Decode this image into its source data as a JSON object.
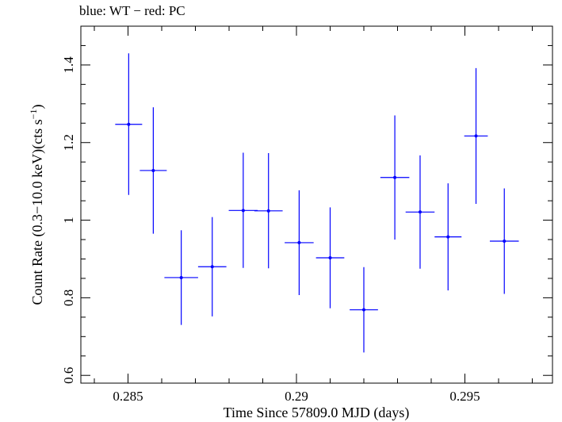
{
  "chart_data": {
    "type": "scatter",
    "title": "blue: WT − red: PC",
    "xlabel": "Time Since 57809.0 MJD (days)",
    "ylabel_main": "Count Rate (0.3−10.0 keV)(cts s",
    "ylabel_sup": "−1",
    "ylabel_close": ")",
    "xlim": [
      0.2836,
      0.2976
    ],
    "ylim": [
      0.58,
      1.5
    ],
    "x_ticks": [
      {
        "value": 0.285,
        "label": "0.285"
      },
      {
        "value": 0.29,
        "label": "0.29"
      },
      {
        "value": 0.295,
        "label": "0.295"
      }
    ],
    "y_ticks": [
      {
        "value": 0.6,
        "label": "0.6"
      },
      {
        "value": 0.8,
        "label": "0.8"
      },
      {
        "value": 1.0,
        "label": "1"
      },
      {
        "value": 1.2,
        "label": "1.2"
      },
      {
        "value": 1.4,
        "label": "1.4"
      }
    ],
    "grid": false,
    "series": [
      {
        "color": "#0000ff",
        "points": [
          {
            "x": 0.28502,
            "y": 1.247,
            "xerr": 0.0004,
            "yerr_low": 0.182,
            "yerr_high": 0.183
          },
          {
            "x": 0.28575,
            "y": 1.128,
            "xerr": 0.0004,
            "yerr_low": 0.163,
            "yerr_high": 0.163
          },
          {
            "x": 0.28658,
            "y": 0.852,
            "xerr": 0.0005,
            "yerr_low": 0.122,
            "yerr_high": 0.122
          },
          {
            "x": 0.2875,
            "y": 0.88,
            "xerr": 0.00042,
            "yerr_low": 0.128,
            "yerr_high": 0.128
          },
          {
            "x": 0.28842,
            "y": 1.025,
            "xerr": 0.00043,
            "yerr_low": 0.148,
            "yerr_high": 0.149
          },
          {
            "x": 0.28917,
            "y": 1.024,
            "xerr": 0.00042,
            "yerr_low": 0.148,
            "yerr_high": 0.149
          },
          {
            "x": 0.29008,
            "y": 0.942,
            "xerr": 0.00043,
            "yerr_low": 0.135,
            "yerr_high": 0.135
          },
          {
            "x": 0.291,
            "y": 0.903,
            "xerr": 0.00042,
            "yerr_low": 0.13,
            "yerr_high": 0.13
          },
          {
            "x": 0.292,
            "y": 0.769,
            "xerr": 0.00042,
            "yerr_low": 0.11,
            "yerr_high": 0.11
          },
          {
            "x": 0.29292,
            "y": 1.11,
            "xerr": 0.00043,
            "yerr_low": 0.16,
            "yerr_high": 0.16
          },
          {
            "x": 0.29367,
            "y": 1.021,
            "xerr": 0.00043,
            "yerr_low": 0.146,
            "yerr_high": 0.146
          },
          {
            "x": 0.2945,
            "y": 0.957,
            "xerr": 0.0004,
            "yerr_low": 0.138,
            "yerr_high": 0.138
          },
          {
            "x": 0.29533,
            "y": 1.217,
            "xerr": 0.00035,
            "yerr_low": 0.175,
            "yerr_high": 0.175
          },
          {
            "x": 0.29617,
            "y": 0.946,
            "xerr": 0.00043,
            "yerr_low": 0.136,
            "yerr_high": 0.136
          }
        ]
      }
    ]
  }
}
